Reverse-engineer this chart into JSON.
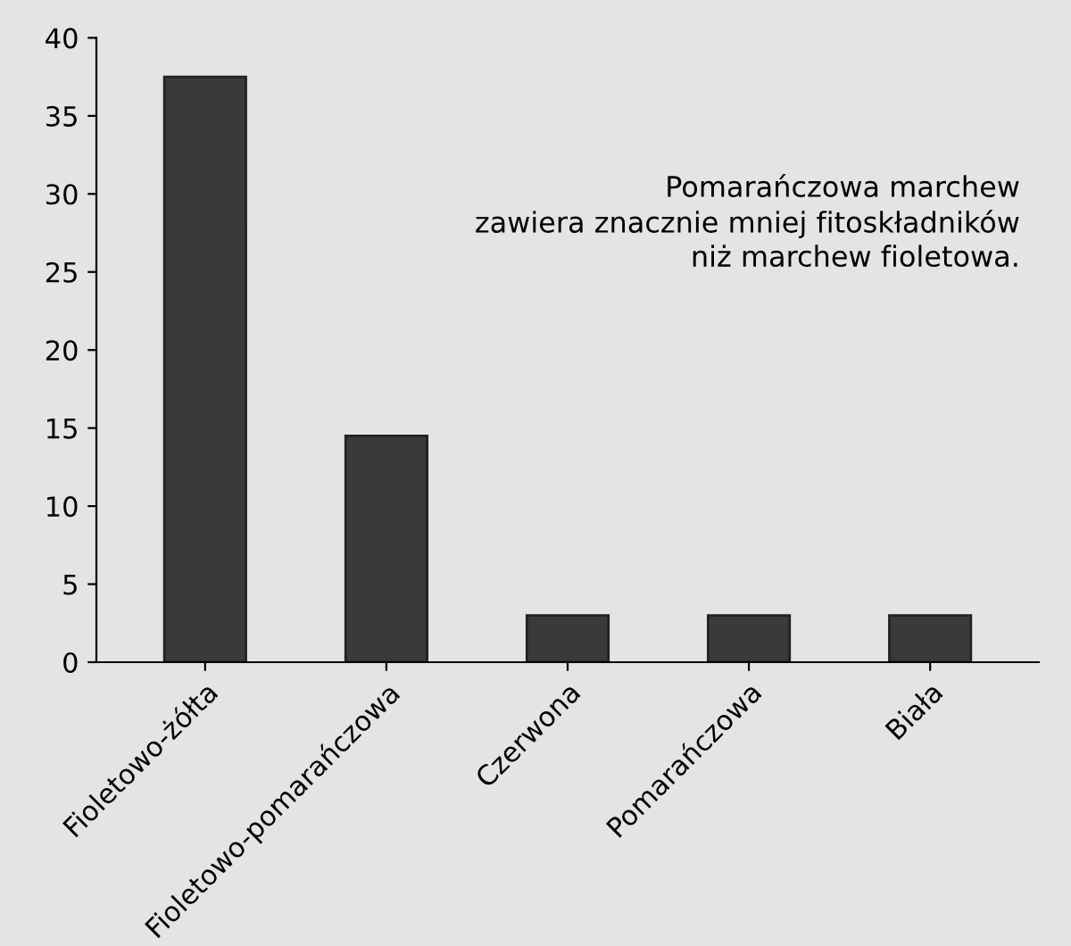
{
  "chart_data": {
    "type": "bar",
    "categories": [
      "Fioletowo-żółta",
      "Fioletowo-pomarańczowa",
      "Czerwona",
      "Pomarańczowa",
      "Biała"
    ],
    "values": [
      37.5,
      14.5,
      3,
      3,
      3
    ],
    "color": "#3a3a3a",
    "ylim": [
      0,
      40
    ],
    "yticks": [
      0,
      5,
      10,
      15,
      20,
      25,
      30,
      35,
      40
    ],
    "annotations": [
      "Pomarańczowa marchew\nzawiera znacznie mniej fitoskładników\nniż marchew fioletowa."
    ]
  }
}
